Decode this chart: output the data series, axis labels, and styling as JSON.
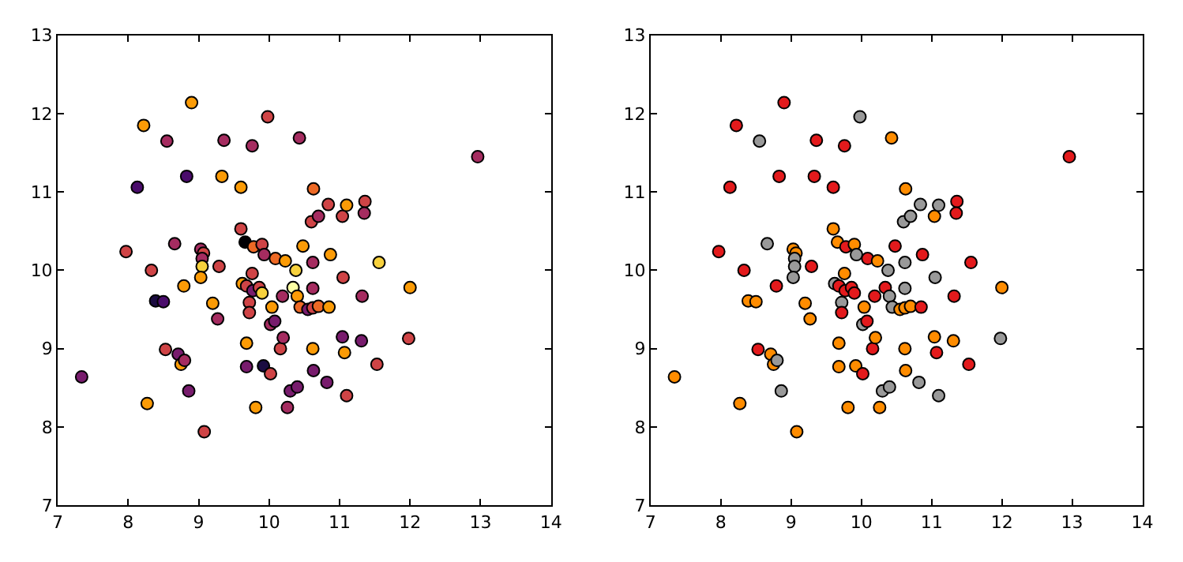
{
  "chart_data": [
    {
      "type": "scatter",
      "marker": "circle",
      "xlim": [
        7,
        14
      ],
      "ylim": [
        7,
        13
      ],
      "xticks": [
        7,
        8,
        9,
        10,
        11,
        12,
        13,
        14
      ],
      "yticks": [
        7,
        8,
        9,
        10,
        11,
        12,
        13
      ],
      "series": [
        {
          "x": [
            7.34,
            7.97,
            8.13,
            8.22,
            8.27,
            8.33,
            8.39,
            8.5,
            8.55,
            8.53,
            8.66,
            8.71,
            8.75,
            8.8,
            8.83,
            8.79,
            8.86,
            8.9,
            9.03,
            9.07,
            9.05,
            9.05,
            9.03,
            9.08,
            9.2,
            9.27,
            9.29,
            9.33,
            9.36,
            9.6,
            9.6,
            9.66,
            9.78,
            9.9,
            9.93,
            9.62,
            9.68,
            9.77,
            9.86,
            9.9,
            9.72,
            9.72,
            9.68,
            9.68,
            9.76,
            9.76,
            9.81,
            9.92,
            9.98,
            10.02,
            10.02,
            10.08,
            10.04,
            10.09,
            10.23,
            10.19,
            10.16,
            10.2,
            10.26,
            10.3,
            10.34,
            10.38,
            10.4,
            10.4,
            10.43,
            10.44,
            10.48,
            10.55,
            10.62,
            10.6,
            10.63,
            10.62,
            10.62,
            10.63,
            10.62,
            10.7,
            10.84,
            10.82,
            10.87,
            10.85,
            10.7,
            11.04,
            11.1,
            11.05,
            11.04,
            11.07,
            11.1,
            11.36,
            11.35,
            11.32,
            11.31,
            11.53,
            11.56,
            12.0,
            11.98,
            12.96
          ],
          "values": [
            8.64,
            10.24,
            11.06,
            11.85,
            8.3,
            10.0,
            9.61,
            9.6,
            11.65,
            8.99,
            10.34,
            8.93,
            8.8,
            8.85,
            11.2,
            9.8,
            8.46,
            12.14,
            10.27,
            10.22,
            10.15,
            10.05,
            9.91,
            7.94,
            9.58,
            9.38,
            10.05,
            11.2,
            11.66,
            10.53,
            11.06,
            10.36,
            10.3,
            10.33,
            10.2,
            9.83,
            9.8,
            9.74,
            9.78,
            9.71,
            9.59,
            9.46,
            9.07,
            8.77,
            11.59,
            9.96,
            8.25,
            8.78,
            11.96,
            8.68,
            9.31,
            9.35,
            9.53,
            10.15,
            10.12,
            9.67,
            9.0,
            9.14,
            8.25,
            8.46,
            9.78,
            10.0,
            9.67,
            8.51,
            11.69,
            9.53,
            10.31,
            9.5,
            9.52,
            10.62,
            11.04,
            10.1,
            9.0,
            8.72,
            9.77,
            9.54,
            10.84,
            8.57,
            10.2,
            9.53,
            10.69,
            10.69,
            10.83,
            9.91,
            9.15,
            8.95,
            8.4,
            10.88,
            10.73,
            9.67,
            9.1,
            8.8,
            10.1,
            9.78,
            9.13,
            11.45
          ],
          "colors": [
            "#781c6d",
            "#cf4446",
            "#4a0c6b",
            "#fb9b06",
            "#fb9b06",
            "#cf4446",
            "#1b0c41",
            "#4a0c6b",
            "#a52c60",
            "#cf4446",
            "#a52c60",
            "#781c6d",
            "#fb9b06",
            "#a52c60",
            "#4a0c6b",
            "#fb9b06",
            "#781c6d",
            "#fb9b06",
            "#a52c60",
            "#cf4446",
            "#a52c60",
            "#f7d13d",
            "#fb9b06",
            "#cf4446",
            "#fb9b06",
            "#a52c60",
            "#cf4446",
            "#fb9b06",
            "#a52c60",
            "#cf4446",
            "#fb9b06",
            "#000004",
            "#ed6925",
            "#cf4446",
            "#a52c60",
            "#fb9b06",
            "#cf4446",
            "#781c6d",
            "#cf4446",
            "#f7d13d",
            "#cf4446",
            "#cf4446",
            "#fb9b06",
            "#781c6d",
            "#a52c60",
            "#cf4446",
            "#fb9b06",
            "#1b0c41",
            "#cf4446",
            "#cf4446",
            "#a52c60",
            "#781c6d",
            "#fb9b06",
            "#ed6925",
            "#fb9b06",
            "#a52c60",
            "#cf4446",
            "#a52c60",
            "#a52c60",
            "#781c6d",
            "#fcffa4",
            "#f7d13d",
            "#fb9b06",
            "#781c6d",
            "#a52c60",
            "#ed6925",
            "#fb9b06",
            "#781c6d",
            "#cf4446",
            "#cf4446",
            "#ed6925",
            "#a52c60",
            "#fb9b06",
            "#781c6d",
            "#a52c60",
            "#ed6925",
            "#cf4446",
            "#781c6d",
            "#fb9b06",
            "#fb9b06",
            "#a52c60",
            "#cf4446",
            "#fb9b06",
            "#cf4446",
            "#781c6d",
            "#fb9b06",
            "#cf4446",
            "#cf4446",
            "#a52c60",
            "#a52c60",
            "#781c6d",
            "#cf4446",
            "#f7d13d",
            "#fb9b06",
            "#cf4446",
            "#a52c60"
          ]
        }
      ]
    },
    {
      "type": "scatter",
      "marker": "circle",
      "xlim": [
        7,
        14
      ],
      "ylim": [
        7,
        13
      ],
      "xticks": [
        7,
        8,
        9,
        10,
        11,
        12,
        13,
        14
      ],
      "yticks": [
        7,
        8,
        9,
        10,
        11,
        12,
        13
      ],
      "series": [
        {
          "x": [
            7.34,
            7.97,
            8.13,
            8.22,
            8.27,
            8.33,
            8.39,
            8.5,
            8.55,
            8.53,
            8.66,
            8.71,
            8.75,
            8.8,
            8.83,
            8.79,
            8.86,
            8.9,
            9.03,
            9.07,
            9.05,
            9.05,
            9.03,
            9.08,
            9.2,
            9.27,
            9.29,
            9.33,
            9.36,
            9.6,
            9.6,
            9.66,
            9.78,
            9.9,
            9.93,
            9.62,
            9.68,
            9.77,
            9.86,
            9.9,
            9.72,
            9.72,
            9.68,
            9.68,
            9.76,
            9.76,
            9.81,
            9.92,
            9.98,
            10.02,
            10.02,
            10.08,
            10.04,
            10.09,
            10.23,
            10.19,
            10.16,
            10.2,
            10.26,
            10.3,
            10.34,
            10.38,
            10.4,
            10.4,
            10.43,
            10.44,
            10.48,
            10.55,
            10.62,
            10.6,
            10.63,
            10.62,
            10.62,
            10.63,
            10.62,
            10.7,
            10.84,
            10.82,
            10.87,
            10.85,
            10.7,
            11.04,
            11.1,
            11.05,
            11.04,
            11.07,
            11.1,
            11.36,
            11.35,
            11.32,
            11.31,
            11.53,
            11.56,
            12.0,
            11.98,
            12.96
          ],
          "values": [
            8.64,
            10.24,
            11.06,
            11.85,
            8.3,
            10.0,
            9.61,
            9.6,
            11.65,
            8.99,
            10.34,
            8.93,
            8.8,
            8.85,
            11.2,
            9.8,
            8.46,
            12.14,
            10.27,
            10.22,
            10.15,
            10.05,
            9.91,
            7.94,
            9.58,
            9.38,
            10.05,
            11.2,
            11.66,
            10.53,
            11.06,
            10.36,
            10.3,
            10.33,
            10.2,
            9.83,
            9.8,
            9.74,
            9.78,
            9.71,
            9.59,
            9.46,
            9.07,
            8.77,
            11.59,
            9.96,
            8.25,
            8.78,
            11.96,
            8.68,
            9.31,
            9.35,
            9.53,
            10.15,
            10.12,
            9.67,
            9.0,
            9.14,
            8.25,
            8.46,
            9.78,
            10.0,
            9.67,
            8.51,
            11.69,
            9.53,
            10.31,
            9.5,
            9.52,
            10.62,
            11.04,
            10.1,
            9.0,
            8.72,
            9.77,
            9.54,
            10.84,
            8.57,
            10.2,
            9.53,
            10.69,
            10.69,
            10.83,
            9.91,
            9.15,
            8.95,
            8.4,
            10.88,
            10.73,
            9.67,
            9.1,
            8.8,
            10.1,
            9.78,
            9.13,
            11.45
          ],
          "colors": [
            "#ff8c00",
            "#e31a1c",
            "#e31a1c",
            "#e31a1c",
            "#ff8c00",
            "#e31a1c",
            "#ff8c00",
            "#ff8c00",
            "#999999",
            "#e31a1c",
            "#999999",
            "#ff8c00",
            "#ff8c00",
            "#999999",
            "#e31a1c",
            "#e31a1c",
            "#999999",
            "#e31a1c",
            "#ff8c00",
            "#ff8c00",
            "#999999",
            "#999999",
            "#999999",
            "#ff8c00",
            "#ff8c00",
            "#ff8c00",
            "#e31a1c",
            "#e31a1c",
            "#e31a1c",
            "#ff8c00",
            "#e31a1c",
            "#ff8c00",
            "#e31a1c",
            "#ff8c00",
            "#999999",
            "#999999",
            "#e31a1c",
            "#e31a1c",
            "#e31a1c",
            "#e31a1c",
            "#999999",
            "#e31a1c",
            "#ff8c00",
            "#ff8c00",
            "#e31a1c",
            "#ff8c00",
            "#ff8c00",
            "#ff8c00",
            "#999999",
            "#e31a1c",
            "#999999",
            "#e31a1c",
            "#ff8c00",
            "#e31a1c",
            "#ff8c00",
            "#e31a1c",
            "#e31a1c",
            "#ff8c00",
            "#ff8c00",
            "#999999",
            "#e31a1c",
            "#999999",
            "#999999",
            "#999999",
            "#ff8c00",
            "#999999",
            "#e31a1c",
            "#ff8c00",
            "#ff8c00",
            "#999999",
            "#ff8c00",
            "#999999",
            "#ff8c00",
            "#ff8c00",
            "#999999",
            "#ff8c00",
            "#999999",
            "#999999",
            "#e31a1c",
            "#e31a1c",
            "#999999",
            "#ff8c00",
            "#999999",
            "#999999",
            "#ff8c00",
            "#e31a1c",
            "#999999",
            "#e31a1c",
            "#e31a1c",
            "#e31a1c",
            "#ff8c00",
            "#e31a1c",
            "#e31a1c",
            "#ff8c00",
            "#999999",
            "#e31a1c"
          ]
        }
      ]
    }
  ]
}
